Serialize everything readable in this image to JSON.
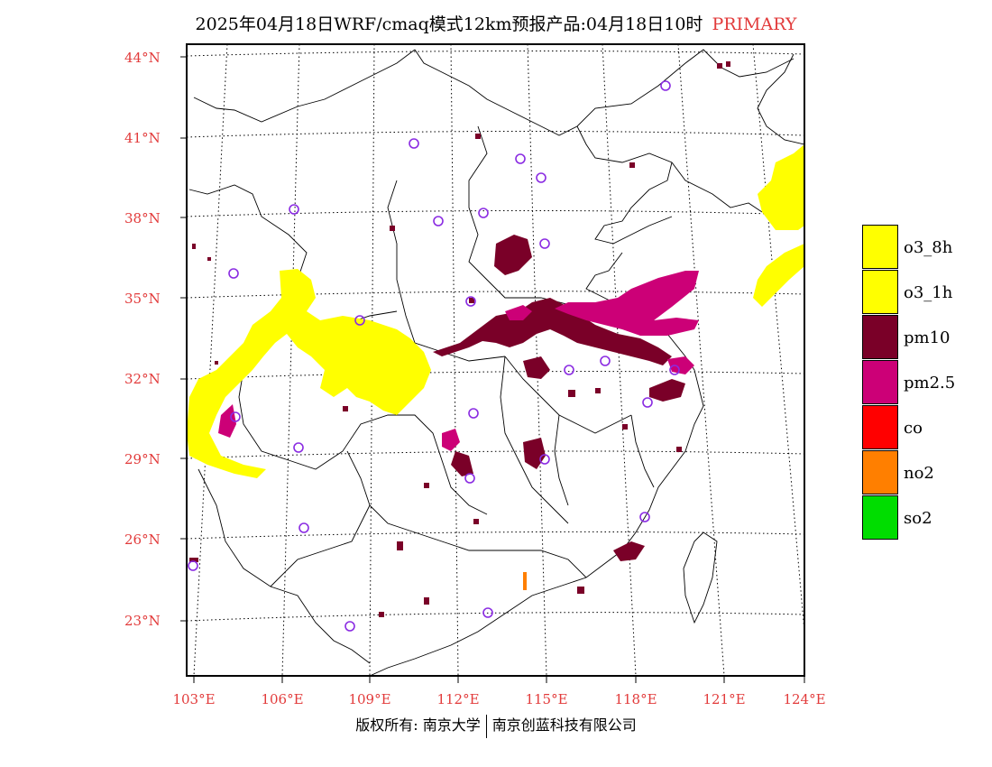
{
  "title": {
    "main": "2025年04月18日WRF/cmaq模式12km预报产品:04月18日10时",
    "tag": "PRIMARY"
  },
  "axes": {
    "lat_labels": [
      "44°N",
      "41°N",
      "38°N",
      "35°N",
      "32°N",
      "29°N",
      "26°N",
      "23°N"
    ],
    "lon_labels": [
      "103°E",
      "106°E",
      "109°E",
      "112°E",
      "115°E",
      "118°E",
      "121°E",
      "124°E"
    ]
  },
  "legend": [
    {
      "label": "o3_8h",
      "color": "#ffff00"
    },
    {
      "label": "o3_1h",
      "color": "#ffff00"
    },
    {
      "label": "pm10",
      "color": "#7a0028"
    },
    {
      "label": "pm2.5",
      "color": "#cc0077"
    },
    {
      "label": "co",
      "color": "#ff0000"
    },
    {
      "label": "no2",
      "color": "#ff7f00"
    },
    {
      "label": "so2",
      "color": "#00dd00"
    }
  ],
  "footer": {
    "left": "版权所有: 南京大学",
    "right": "南京创蓝科技有限公司"
  },
  "colors": {
    "axis_text": "#e23b3b",
    "station_marker": "#8a2be2"
  }
}
